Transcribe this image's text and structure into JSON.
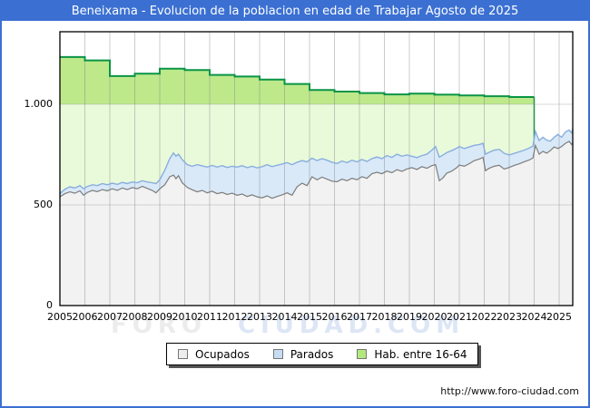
{
  "header": {
    "title": "Beneixama - Evolucion de la poblacion en edad de Trabajar Agosto de 2025"
  },
  "footer": {
    "url": "http://www.foro-ciudad.com"
  },
  "watermark": {
    "left": "FORO",
    "right": "CIUDAD.COM"
  },
  "colors": {
    "accent_blue": "#3b70d2",
    "green_line": "#0a9447",
    "green_fill_upper": "#bde98b",
    "green_fill_lower": "#e9fadb",
    "blue_line": "#89aede",
    "blue_fill": "#d9e9f8",
    "gray_line": "#7d7d7d",
    "gray_fill": "#f2f2f2",
    "gridline": "#c9c9c9"
  },
  "legend": {
    "items": [
      {
        "label": "Ocupados",
        "swatch": "#ededed"
      },
      {
        "label": "Parados",
        "swatch": "#c6dcf2"
      },
      {
        "label": "Hab. entre 16-64",
        "swatch": "#b3e87c"
      }
    ]
  },
  "chart_data": {
    "type": "area",
    "title": "Beneixama - Evolucion de la poblacion en edad de Trabajar Agosto de 2025",
    "xlabel": "",
    "ylabel": "",
    "x_axis": {
      "range": [
        2005,
        2025.58
      ],
      "ticks": [
        "2005",
        "2006",
        "2007",
        "2008",
        "2009",
        "2010",
        "2011",
        "2012",
        "2013",
        "2014",
        "2015",
        "2016",
        "2017",
        "2018",
        "2019",
        "2020",
        "2021",
        "2022",
        "2023",
        "2024",
        "2025"
      ]
    },
    "y_axis": {
      "range": [
        0,
        1360
      ],
      "ticks": [
        {
          "value": 0,
          "label": "0"
        },
        {
          "value": 500,
          "label": "500"
        },
        {
          "value": 1000,
          "label": "1.000"
        }
      ]
    },
    "grid": true,
    "legend_position": "bottom",
    "series": [
      {
        "name": "Hab. entre 16-64",
        "render": "step-area",
        "note": "annual padron steps, data ends Jan 2024; fill darker above y=1000",
        "steps": [
          {
            "year": 2005,
            "value": 1235
          },
          {
            "year": 2006,
            "value": 1218
          },
          {
            "year": 2007,
            "value": 1140
          },
          {
            "year": 2008,
            "value": 1152
          },
          {
            "year": 2009,
            "value": 1177
          },
          {
            "year": 2010,
            "value": 1170
          },
          {
            "year": 2011,
            "value": 1146
          },
          {
            "year": 2012,
            "value": 1138
          },
          {
            "year": 2013,
            "value": 1123
          },
          {
            "year": 2014,
            "value": 1101
          },
          {
            "year": 2015,
            "value": 1071
          },
          {
            "year": 2016,
            "value": 1063
          },
          {
            "year": 2017,
            "value": 1056
          },
          {
            "year": 2018,
            "value": 1049
          },
          {
            "year": 2019,
            "value": 1053
          },
          {
            "year": 2020,
            "value": 1048
          },
          {
            "year": 2021,
            "value": 1044
          },
          {
            "year": 2022,
            "value": 1040
          },
          {
            "year": 2023,
            "value": 1036
          }
        ],
        "end_x": 2024.0
      },
      {
        "name": "Parados",
        "render": "area-line",
        "note": "stacked band: top edge = Ocupados + Parados",
        "points": [
          [
            2005.0,
            556
          ],
          [
            2005.2,
            578
          ],
          [
            2005.4,
            590
          ],
          [
            2005.6,
            584
          ],
          [
            2005.8,
            596
          ],
          [
            2005.95,
            580
          ],
          [
            2006.1,
            592
          ],
          [
            2006.3,
            600
          ],
          [
            2006.5,
            596
          ],
          [
            2006.7,
            606
          ],
          [
            2006.9,
            600
          ],
          [
            2007.1,
            608
          ],
          [
            2007.3,
            602
          ],
          [
            2007.5,
            612
          ],
          [
            2007.7,
            606
          ],
          [
            2007.9,
            614
          ],
          [
            2008.1,
            610
          ],
          [
            2008.3,
            620
          ],
          [
            2008.5,
            614
          ],
          [
            2008.7,
            610
          ],
          [
            2008.85,
            606
          ],
          [
            2009.0,
            625
          ],
          [
            2009.2,
            672
          ],
          [
            2009.4,
            730
          ],
          [
            2009.55,
            758
          ],
          [
            2009.65,
            742
          ],
          [
            2009.75,
            752
          ],
          [
            2009.9,
            725
          ],
          [
            2010.1,
            700
          ],
          [
            2010.3,
            692
          ],
          [
            2010.5,
            700
          ],
          [
            2010.7,
            694
          ],
          [
            2010.9,
            688
          ],
          [
            2011.1,
            696
          ],
          [
            2011.3,
            688
          ],
          [
            2011.5,
            695
          ],
          [
            2011.7,
            686
          ],
          [
            2011.9,
            692
          ],
          [
            2012.1,
            688
          ],
          [
            2012.3,
            695
          ],
          [
            2012.5,
            685
          ],
          [
            2012.7,
            692
          ],
          [
            2012.9,
            684
          ],
          [
            2013.1,
            690
          ],
          [
            2013.3,
            700
          ],
          [
            2013.5,
            690
          ],
          [
            2013.7,
            697
          ],
          [
            2013.9,
            703
          ],
          [
            2014.1,
            710
          ],
          [
            2014.3,
            700
          ],
          [
            2014.5,
            712
          ],
          [
            2014.7,
            720
          ],
          [
            2014.9,
            714
          ],
          [
            2015.1,
            732
          ],
          [
            2015.3,
            720
          ],
          [
            2015.5,
            730
          ],
          [
            2015.7,
            722
          ],
          [
            2015.9,
            712
          ],
          [
            2016.1,
            706
          ],
          [
            2016.3,
            718
          ],
          [
            2016.5,
            710
          ],
          [
            2016.7,
            722
          ],
          [
            2016.9,
            714
          ],
          [
            2017.1,
            726
          ],
          [
            2017.3,
            716
          ],
          [
            2017.5,
            730
          ],
          [
            2017.7,
            738
          ],
          [
            2017.9,
            730
          ],
          [
            2018.1,
            745
          ],
          [
            2018.3,
            736
          ],
          [
            2018.5,
            752
          ],
          [
            2018.7,
            742
          ],
          [
            2018.9,
            748
          ],
          [
            2019.1,
            742
          ],
          [
            2019.3,
            735
          ],
          [
            2019.5,
            745
          ],
          [
            2019.7,
            752
          ],
          [
            2019.9,
            772
          ],
          [
            2020.05,
            790
          ],
          [
            2020.2,
            737
          ],
          [
            2020.35,
            748
          ],
          [
            2020.5,
            760
          ],
          [
            2020.7,
            770
          ],
          [
            2020.9,
            782
          ],
          [
            2021.0,
            790
          ],
          [
            2021.2,
            780
          ],
          [
            2021.4,
            788
          ],
          [
            2021.6,
            796
          ],
          [
            2021.8,
            800
          ],
          [
            2021.95,
            806
          ],
          [
            2022.05,
            752
          ],
          [
            2022.2,
            762
          ],
          [
            2022.4,
            772
          ],
          [
            2022.6,
            776
          ],
          [
            2022.8,
            756
          ],
          [
            2023.0,
            748
          ],
          [
            2023.2,
            756
          ],
          [
            2023.4,
            764
          ],
          [
            2023.6,
            772
          ],
          [
            2023.8,
            782
          ],
          [
            2023.95,
            792
          ],
          [
            2024.05,
            865
          ],
          [
            2024.2,
            820
          ],
          [
            2024.35,
            836
          ],
          [
            2024.5,
            822
          ],
          [
            2024.65,
            817
          ],
          [
            2024.8,
            836
          ],
          [
            2024.95,
            850
          ],
          [
            2025.1,
            836
          ],
          [
            2025.25,
            862
          ],
          [
            2025.4,
            872
          ],
          [
            2025.5,
            858
          ],
          [
            2025.58,
            878
          ]
        ]
      },
      {
        "name": "Ocupados",
        "render": "area-line",
        "points": [
          [
            2005.0,
            540
          ],
          [
            2005.2,
            556
          ],
          [
            2005.4,
            565
          ],
          [
            2005.6,
            558
          ],
          [
            2005.8,
            570
          ],
          [
            2005.95,
            548
          ],
          [
            2006.1,
            562
          ],
          [
            2006.3,
            572
          ],
          [
            2006.5,
            566
          ],
          [
            2006.7,
            576
          ],
          [
            2006.9,
            570
          ],
          [
            2007.1,
            580
          ],
          [
            2007.3,
            572
          ],
          [
            2007.5,
            584
          ],
          [
            2007.7,
            576
          ],
          [
            2007.9,
            586
          ],
          [
            2008.1,
            580
          ],
          [
            2008.3,
            592
          ],
          [
            2008.5,
            582
          ],
          [
            2008.7,
            572
          ],
          [
            2008.85,
            560
          ],
          [
            2009.0,
            580
          ],
          [
            2009.2,
            600
          ],
          [
            2009.4,
            640
          ],
          [
            2009.55,
            648
          ],
          [
            2009.65,
            630
          ],
          [
            2009.75,
            645
          ],
          [
            2009.9,
            610
          ],
          [
            2010.1,
            587
          ],
          [
            2010.3,
            575
          ],
          [
            2010.5,
            565
          ],
          [
            2010.7,
            572
          ],
          [
            2010.9,
            560
          ],
          [
            2011.1,
            568
          ],
          [
            2011.3,
            556
          ],
          [
            2011.5,
            562
          ],
          [
            2011.7,
            552
          ],
          [
            2011.9,
            558
          ],
          [
            2012.1,
            548
          ],
          [
            2012.3,
            554
          ],
          [
            2012.5,
            542
          ],
          [
            2012.7,
            550
          ],
          [
            2012.9,
            540
          ],
          [
            2013.1,
            535
          ],
          [
            2013.3,
            545
          ],
          [
            2013.5,
            533
          ],
          [
            2013.7,
            542
          ],
          [
            2013.9,
            550
          ],
          [
            2014.1,
            560
          ],
          [
            2014.3,
            548
          ],
          [
            2014.5,
            590
          ],
          [
            2014.7,
            608
          ],
          [
            2014.9,
            596
          ],
          [
            2015.1,
            640
          ],
          [
            2015.3,
            625
          ],
          [
            2015.5,
            638
          ],
          [
            2015.7,
            628
          ],
          [
            2015.9,
            618
          ],
          [
            2016.1,
            615
          ],
          [
            2016.3,
            628
          ],
          [
            2016.5,
            620
          ],
          [
            2016.7,
            632
          ],
          [
            2016.9,
            625
          ],
          [
            2017.1,
            640
          ],
          [
            2017.3,
            632
          ],
          [
            2017.5,
            655
          ],
          [
            2017.7,
            662
          ],
          [
            2017.9,
            655
          ],
          [
            2018.1,
            668
          ],
          [
            2018.3,
            660
          ],
          [
            2018.5,
            675
          ],
          [
            2018.7,
            667
          ],
          [
            2018.9,
            678
          ],
          [
            2019.1,
            685
          ],
          [
            2019.3,
            676
          ],
          [
            2019.5,
            690
          ],
          [
            2019.7,
            682
          ],
          [
            2019.9,
            695
          ],
          [
            2020.05,
            700
          ],
          [
            2020.2,
            620
          ],
          [
            2020.35,
            635
          ],
          [
            2020.5,
            658
          ],
          [
            2020.7,
            668
          ],
          [
            2020.9,
            685
          ],
          [
            2021.0,
            698
          ],
          [
            2021.2,
            692
          ],
          [
            2021.4,
            705
          ],
          [
            2021.6,
            720
          ],
          [
            2021.8,
            728
          ],
          [
            2021.95,
            736
          ],
          [
            2022.05,
            670
          ],
          [
            2022.2,
            682
          ],
          [
            2022.4,
            692
          ],
          [
            2022.6,
            697
          ],
          [
            2022.8,
            678
          ],
          [
            2023.0,
            686
          ],
          [
            2023.2,
            696
          ],
          [
            2023.4,
            704
          ],
          [
            2023.6,
            714
          ],
          [
            2023.8,
            723
          ],
          [
            2023.95,
            733
          ],
          [
            2024.05,
            795
          ],
          [
            2024.2,
            752
          ],
          [
            2024.35,
            766
          ],
          [
            2024.5,
            757
          ],
          [
            2024.65,
            770
          ],
          [
            2024.8,
            788
          ],
          [
            2024.95,
            780
          ],
          [
            2025.1,
            790
          ],
          [
            2025.25,
            806
          ],
          [
            2025.4,
            816
          ],
          [
            2025.5,
            800
          ],
          [
            2025.58,
            810
          ]
        ]
      }
    ]
  }
}
